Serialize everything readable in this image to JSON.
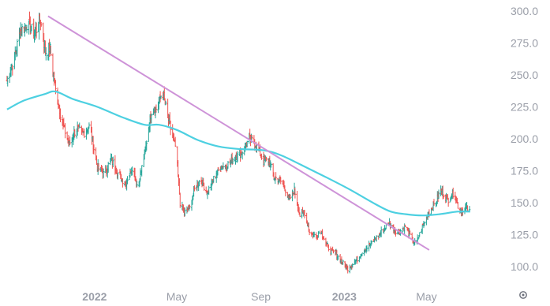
{
  "chart_data": {
    "type": "ohlc",
    "title": "",
    "xlabel": "",
    "ylabel": "",
    "ylim": [
      90,
      305
    ],
    "y_ticks": [
      "300.0",
      "275.0",
      "250.0",
      "225.0",
      "200.0",
      "175.0",
      "150.0",
      "125.0",
      "100.0"
    ],
    "x_ticks": [
      "2022",
      "May",
      "Sep",
      "2023",
      "May"
    ],
    "x_tick_dates": [
      "2022-01-01",
      "2022-05-01",
      "2022-09-01",
      "2023-01-01",
      "2023-05-01"
    ],
    "x_range": [
      "2021-08-25",
      "2023-08-10"
    ],
    "grid": false,
    "legend": "none",
    "colors": {
      "up": "#26a69a",
      "down": "#ef5350",
      "moving_average": "#4dd0e1",
      "trendline": "#ce93d8"
    },
    "price_path": [
      [
        "2021-08-26",
        245
      ],
      [
        "2021-09-05",
        262
      ],
      [
        "2021-09-15",
        285
      ],
      [
        "2021-09-24",
        290
      ],
      [
        "2021-10-05",
        282
      ],
      [
        "2021-10-14",
        292
      ],
      [
        "2021-10-21",
        268
      ],
      [
        "2021-10-28",
        270
      ],
      [
        "2021-11-05",
        238
      ],
      [
        "2021-11-15",
        212
      ],
      [
        "2021-11-25",
        196
      ],
      [
        "2021-12-05",
        208
      ],
      [
        "2021-12-15",
        204
      ],
      [
        "2021-12-25",
        210
      ],
      [
        "2022-01-05",
        178
      ],
      [
        "2022-01-15",
        172
      ],
      [
        "2022-01-25",
        184
      ],
      [
        "2022-02-05",
        172
      ],
      [
        "2022-02-15",
        165
      ],
      [
        "2022-02-25",
        178
      ],
      [
        "2022-03-05",
        162
      ],
      [
        "2022-03-15",
        188
      ],
      [
        "2022-03-25",
        222
      ],
      [
        "2022-04-03",
        224
      ],
      [
        "2022-04-10",
        238
      ],
      [
        "2022-04-20",
        212
      ],
      [
        "2022-04-30",
        192
      ],
      [
        "2022-05-06",
        150
      ],
      [
        "2022-05-12",
        142
      ],
      [
        "2022-05-20",
        146
      ],
      [
        "2022-05-28",
        162
      ],
      [
        "2022-06-05",
        168
      ],
      [
        "2022-06-15",
        158
      ],
      [
        "2022-06-25",
        170
      ],
      [
        "2022-07-05",
        178
      ],
      [
        "2022-07-15",
        180
      ],
      [
        "2022-07-25",
        186
      ],
      [
        "2022-08-05",
        190
      ],
      [
        "2022-08-15",
        200
      ],
      [
        "2022-08-22",
        198
      ],
      [
        "2022-08-30",
        190
      ],
      [
        "2022-09-05",
        182
      ],
      [
        "2022-09-12",
        184
      ],
      [
        "2022-09-20",
        170
      ],
      [
        "2022-09-28",
        168
      ],
      [
        "2022-10-05",
        163
      ],
      [
        "2022-10-12",
        152
      ],
      [
        "2022-10-20",
        160
      ],
      [
        "2022-10-28",
        140
      ],
      [
        "2022-11-04",
        142
      ],
      [
        "2022-11-12",
        126
      ],
      [
        "2022-11-20",
        124
      ],
      [
        "2022-11-28",
        128
      ],
      [
        "2022-12-05",
        118
      ],
      [
        "2022-12-12",
        112
      ],
      [
        "2022-12-20",
        110
      ],
      [
        "2022-12-28",
        104
      ],
      [
        "2023-01-05",
        98
      ],
      [
        "2023-01-12",
        102
      ],
      [
        "2023-01-20",
        106
      ],
      [
        "2023-01-28",
        112
      ],
      [
        "2023-02-05",
        116
      ],
      [
        "2023-02-12",
        120
      ],
      [
        "2023-02-20",
        124
      ],
      [
        "2023-02-28",
        130
      ],
      [
        "2023-03-08",
        134
      ],
      [
        "2023-03-16",
        128
      ],
      [
        "2023-03-24",
        128
      ],
      [
        "2023-04-01",
        132
      ],
      [
        "2023-04-10",
        120
      ],
      [
        "2023-04-16",
        118
      ],
      [
        "2023-04-24",
        130
      ],
      [
        "2023-05-04",
        142
      ],
      [
        "2023-05-14",
        150
      ],
      [
        "2023-05-22",
        160
      ],
      [
        "2023-06-01",
        152
      ],
      [
        "2023-06-10",
        158
      ],
      [
        "2023-06-18",
        144
      ],
      [
        "2023-06-28",
        146
      ],
      [
        "2023-07-04",
        142
      ]
    ],
    "moving_average": [
      [
        "2021-08-26",
        223
      ],
      [
        "2021-09-20",
        230
      ],
      [
        "2021-10-20",
        235
      ],
      [
        "2021-11-05",
        237
      ],
      [
        "2021-12-01",
        231
      ],
      [
        "2022-01-05",
        225
      ],
      [
        "2022-02-10",
        217
      ],
      [
        "2022-03-15",
        211
      ],
      [
        "2022-04-05",
        211
      ],
      [
        "2022-05-01",
        207
      ],
      [
        "2022-06-01",
        199
      ],
      [
        "2022-07-01",
        194
      ],
      [
        "2022-08-01",
        192
      ],
      [
        "2022-09-05",
        191
      ],
      [
        "2022-10-01",
        187
      ],
      [
        "2022-11-01",
        179
      ],
      [
        "2022-12-05",
        170
      ],
      [
        "2023-01-10",
        160
      ],
      [
        "2023-02-15",
        149
      ],
      [
        "2023-03-10",
        143
      ],
      [
        "2023-04-01",
        141
      ],
      [
        "2023-04-25",
        140
      ],
      [
        "2023-05-20",
        141
      ],
      [
        "2023-06-15",
        143
      ],
      [
        "2023-07-04",
        143
      ]
    ],
    "trendline": {
      "start": [
        "2021-10-25",
        296
      ],
      "end": [
        "2023-05-05",
        113
      ]
    }
  },
  "toolbar": {
    "settings_icon": "gear-icon"
  }
}
